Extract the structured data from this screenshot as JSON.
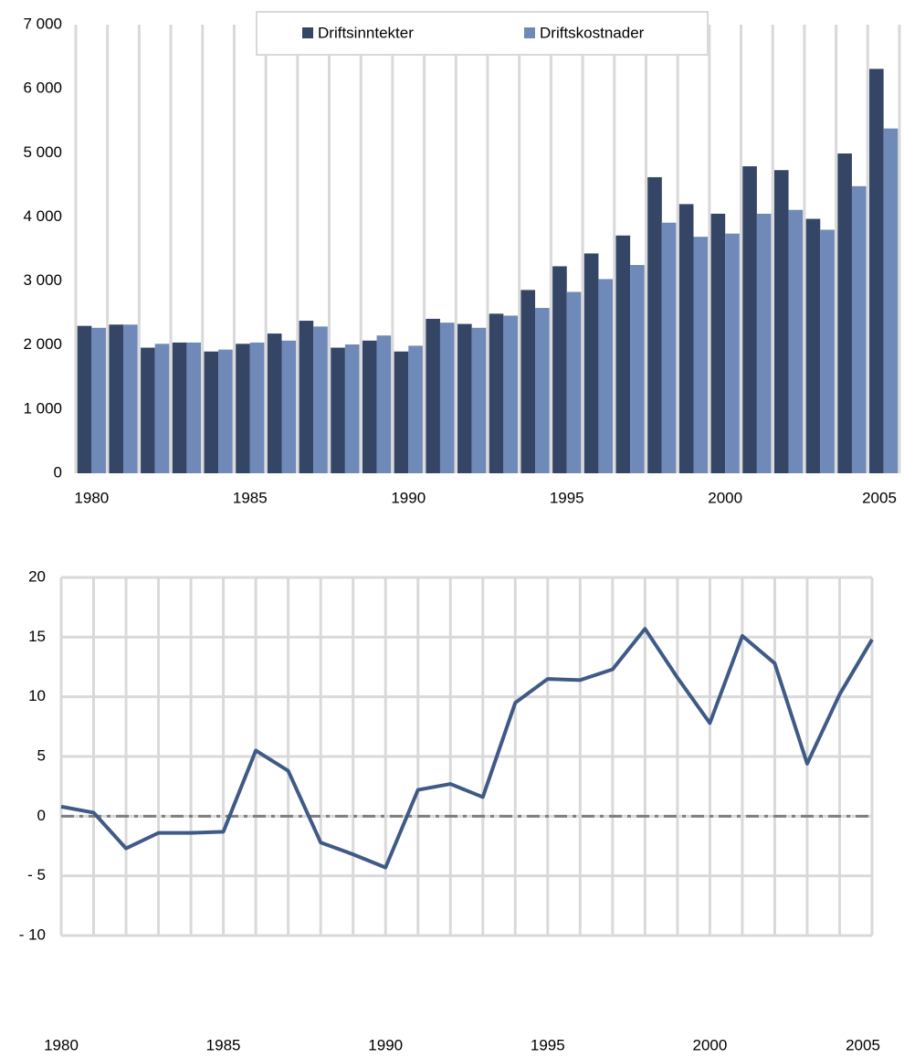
{
  "chart_data": [
    {
      "type": "bar",
      "categories": [
        "1980",
        null,
        null,
        null,
        null,
        "1985",
        null,
        null,
        null,
        null,
        "1990",
        null,
        null,
        null,
        null,
        "1995",
        null,
        null,
        null,
        null,
        "2000",
        null,
        null,
        null,
        null,
        "2005"
      ],
      "series": [
        {
          "name": "Driftsinntekter",
          "color": "#344566",
          "values": [
            2300,
            2320,
            1960,
            2040,
            1900,
            2020,
            2180,
            2380,
            1960,
            2070,
            1900,
            2410,
            2330,
            2490,
            2860,
            3230,
            3430,
            3710,
            4620,
            4200,
            4050,
            4790,
            4730,
            3970,
            4990,
            6310
          ]
        },
        {
          "name": "Driftskostnader",
          "color": "#6f89b8",
          "values": [
            2270,
            2320,
            2020,
            2040,
            1930,
            2040,
            2070,
            2290,
            2010,
            2150,
            1990,
            2350,
            2270,
            2460,
            2580,
            2830,
            3030,
            3250,
            3910,
            3690,
            3740,
            4050,
            4110,
            3800,
            4480,
            5380
          ]
        }
      ],
      "ylim": [
        0,
        7000
      ],
      "yticks": [
        0,
        {
          "value": 1000,
          "label": "1 000"
        },
        {
          "value": 2000,
          "label": "2 000"
        },
        {
          "value": 3000,
          "label": "3 000"
        },
        {
          "value": 4000,
          "label": "4 000"
        },
        {
          "value": 5000,
          "label": "5 000"
        },
        {
          "value": 6000,
          "label": "6 000"
        },
        {
          "value": 7000,
          "label": "7 000"
        }
      ],
      "legend": "top"
    },
    {
      "type": "line",
      "x": [
        1980,
        1981,
        1982,
        1983,
        1984,
        1985,
        1986,
        1987,
        1988,
        1989,
        1990,
        1991,
        1992,
        1993,
        1994,
        1995,
        1996,
        1997,
        1998,
        1999,
        2000,
        2001,
        2002,
        2003,
        2004,
        2005
      ],
      "values": [
        0.8,
        0.3,
        -2.7,
        -1.4,
        -1.4,
        -1.3,
        5.5,
        3.8,
        -2.2,
        -3.2,
        -4.3,
        2.2,
        2.7,
        1.6,
        9.5,
        11.5,
        11.4,
        12.3,
        15.7,
        11.6,
        7.8,
        15.1,
        12.8,
        4.4,
        10.2,
        14.8
      ],
      "color": "#3f5a87",
      "xlim": [
        1980,
        2005
      ],
      "xticks": [
        1980,
        1985,
        1990,
        1995,
        2000,
        2005
      ],
      "ylim": [
        -10,
        20
      ],
      "yticks": [
        {
          "value": -10,
          "label": "- 10"
        },
        {
          "value": -5,
          "label": "- 5"
        },
        0,
        5,
        10,
        15,
        20
      ],
      "hline": 0,
      "grid": true
    }
  ]
}
